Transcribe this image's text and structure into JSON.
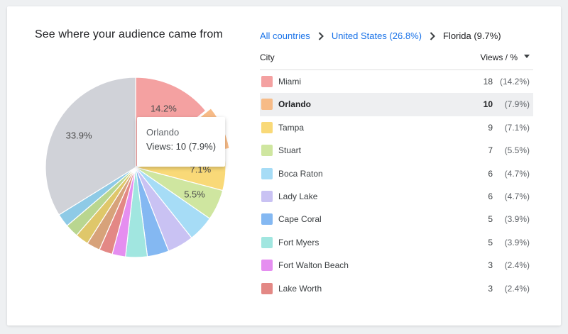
{
  "header": {
    "title": "See where your audience came from"
  },
  "breadcrumb": {
    "items": [
      {
        "label": "All countries",
        "link": true
      },
      {
        "label": "United States (26.8%)",
        "link": true
      },
      {
        "label": "Florida (9.7%)",
        "link": false
      }
    ]
  },
  "table": {
    "col_city": "City",
    "col_views": "Views / %",
    "rows": [
      {
        "city": "Miami",
        "views": "18",
        "pct": "(14.2%)",
        "color": "#f4a1a1"
      },
      {
        "city": "Orlando",
        "views": "10",
        "pct": "(7.9%)",
        "color": "#f7bb87",
        "active": true
      },
      {
        "city": "Tampa",
        "views": "9",
        "pct": "(7.1%)",
        "color": "#f9d978"
      },
      {
        "city": "Stuart",
        "views": "7",
        "pct": "(5.5%)",
        "color": "#cfe6a0"
      },
      {
        "city": "Boca Raton",
        "views": "6",
        "pct": "(4.7%)",
        "color": "#a6dcf6"
      },
      {
        "city": "Lady Lake",
        "views": "6",
        "pct": "(4.7%)",
        "color": "#c9c2f3"
      },
      {
        "city": "Cape Coral",
        "views": "5",
        "pct": "(3.9%)",
        "color": "#84b8f2"
      },
      {
        "city": "Fort Myers",
        "views": "5",
        "pct": "(3.9%)",
        "color": "#a1e6e0"
      },
      {
        "city": "Fort Walton Beach",
        "views": "3",
        "pct": "(2.4%)",
        "color": "#e58ef0"
      },
      {
        "city": "Lake Worth",
        "views": "3",
        "pct": "(2.4%)",
        "color": "#e38885"
      }
    ]
  },
  "tooltip": {
    "city": "Orlando",
    "text": "Views: 10 (7.9%)"
  },
  "chart_data": {
    "type": "pie",
    "title": "See where your audience came from",
    "slices": [
      {
        "name": "Miami",
        "value": 14.2,
        "label": "14.2%",
        "color": "#f4a1a1"
      },
      {
        "name": "Orlando",
        "value": 7.9,
        "label": "",
        "color": "#f7bb87",
        "highlighted": true
      },
      {
        "name": "Tampa",
        "value": 7.1,
        "label": "7.1%",
        "color": "#f9d978"
      },
      {
        "name": "Stuart",
        "value": 5.5,
        "label": "5.5%",
        "color": "#cfe6a0"
      },
      {
        "name": "Boca Raton",
        "value": 4.7,
        "label": "",
        "color": "#a6dcf6"
      },
      {
        "name": "Lady Lake",
        "value": 4.7,
        "label": "",
        "color": "#c9c2f3"
      },
      {
        "name": "Cape Coral",
        "value": 3.9,
        "label": "",
        "color": "#84b8f2"
      },
      {
        "name": "Fort Myers",
        "value": 3.9,
        "label": "",
        "color": "#a1e6e0"
      },
      {
        "name": "Fort Walton Beach",
        "value": 2.4,
        "label": "",
        "color": "#e58ef0"
      },
      {
        "name": "Lake Worth",
        "value": 2.4,
        "label": "",
        "color": "#e38885"
      },
      {
        "name": "",
        "value": 2.4,
        "label": "",
        "color": "#d7a27a"
      },
      {
        "name": "",
        "value": 2.4,
        "label": "",
        "color": "#dfc76a"
      },
      {
        "name": "",
        "value": 2.4,
        "label": "",
        "color": "#b9d690"
      },
      {
        "name": "",
        "value": 2.4,
        "label": "",
        "color": "#8ecae6"
      },
      {
        "name": "",
        "value": 33.9,
        "label": "33.9%",
        "color": "#d0d2d8"
      }
    ]
  }
}
